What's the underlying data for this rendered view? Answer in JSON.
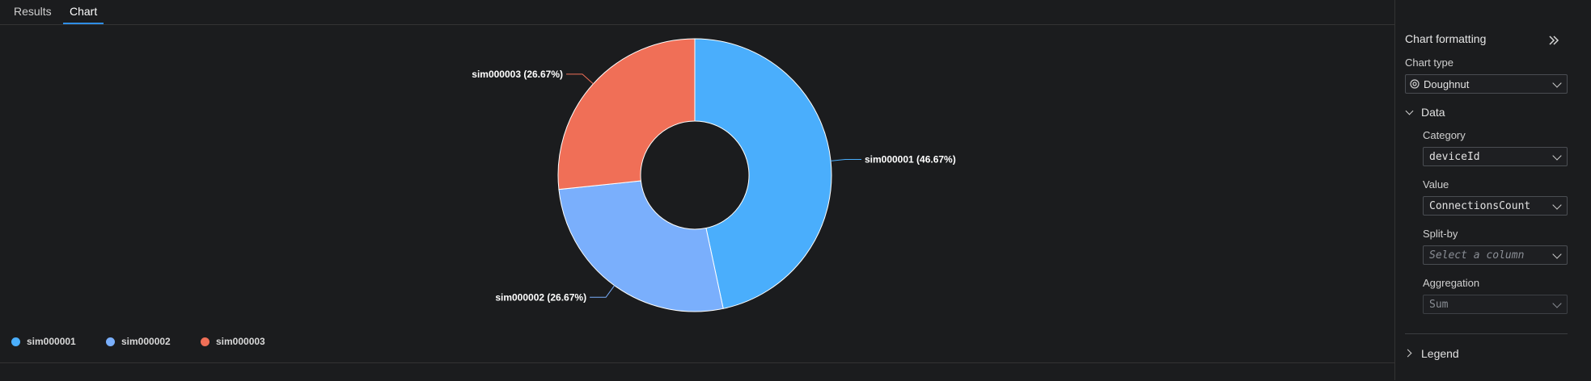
{
  "tabs": [
    {
      "label": "Results",
      "active": false
    },
    {
      "label": "Chart",
      "active": true
    }
  ],
  "chart_data": {
    "type": "pie",
    "variant": "doughnut",
    "categories": [
      "sim000001",
      "sim000002",
      "sim000003"
    ],
    "percentages": [
      "46.67%",
      "26.67%",
      "26.67%"
    ],
    "values": [
      46.67,
      26.67,
      26.67
    ],
    "slice_labels": [
      "sim000001 (46.67%)",
      "sim000002 (26.67%)",
      "sim000003 (26.67%)"
    ],
    "colors": [
      "#4aaefc",
      "#7aaffc",
      "#f06f57"
    ],
    "legend_placement": "bottom-left"
  },
  "legend": {
    "items": [
      {
        "label": "sim000001",
        "color": "#4aaefc"
      },
      {
        "label": "sim000002",
        "color": "#7aaffc"
      },
      {
        "label": "sim000003",
        "color": "#f06f57"
      }
    ]
  },
  "panel": {
    "title": "Chart formatting",
    "chart_type_label": "Chart type",
    "chart_type_value": "Doughnut",
    "data_section": "Data",
    "category_label": "Category",
    "category_value": "deviceId",
    "value_label": "Value",
    "value_value": "ConnectionsCount",
    "splitby_label": "Split-by",
    "splitby_placeholder": "Select a column",
    "aggregation_label": "Aggregation",
    "aggregation_value": "Sum",
    "legend_section": "Legend"
  }
}
